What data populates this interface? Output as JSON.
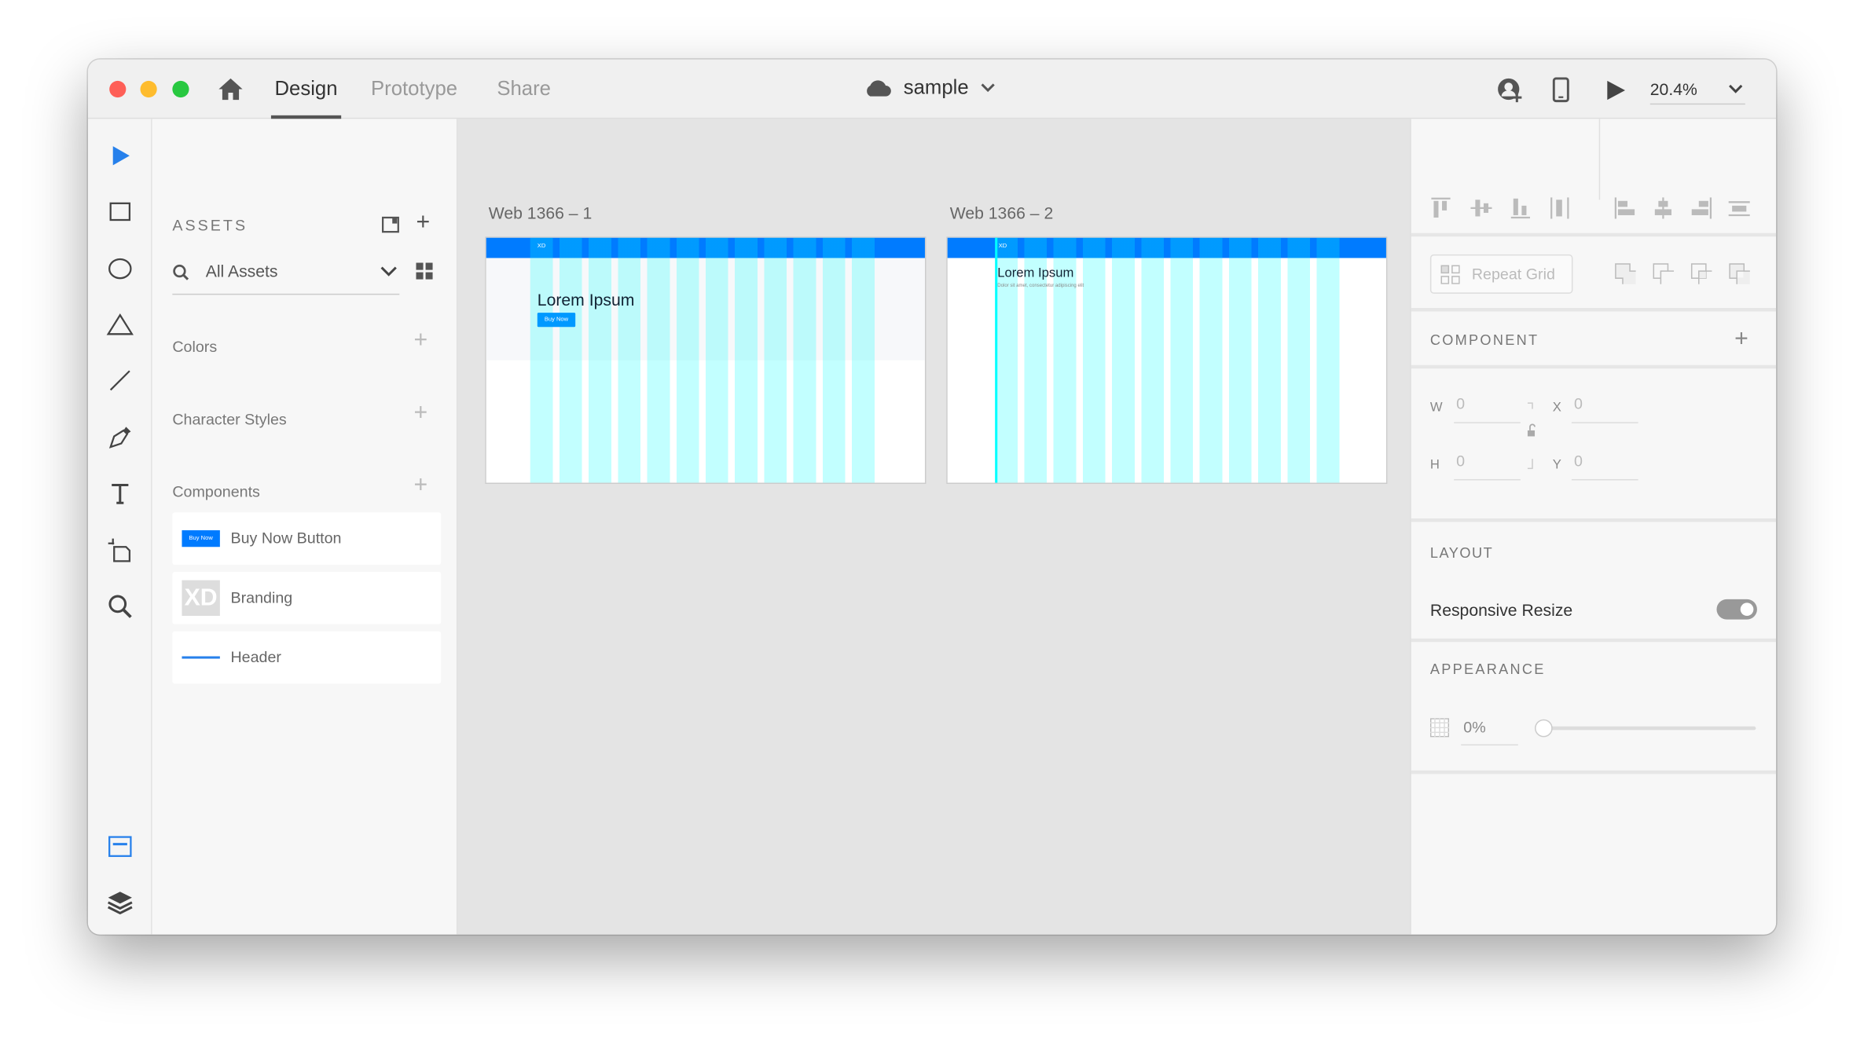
{
  "titlebar": {
    "tabs": [
      {
        "label": "Design",
        "active": true
      },
      {
        "label": "Prototype",
        "active": false
      },
      {
        "label": "Share",
        "active": false
      }
    ],
    "document": "sample",
    "zoom": "20.4%",
    "icons": [
      "home-icon",
      "cloud-icon",
      "invite-user-icon",
      "mobile-preview-icon",
      "play-icon",
      "chevron-down-icon"
    ]
  },
  "tools": [
    "select",
    "rectangle",
    "ellipse",
    "polygon",
    "line",
    "pen",
    "text",
    "artboard",
    "zoom",
    "assets",
    "layers",
    "plugins"
  ],
  "assets": {
    "title": "ASSETS",
    "filter": "All Assets",
    "sections": {
      "colors": "Colors",
      "character_styles": "Character Styles",
      "components": "Components"
    },
    "components": [
      {
        "name": "Buy Now Button",
        "thumb": "Buy Now"
      },
      {
        "name": "Branding",
        "thumb": "XD"
      },
      {
        "name": "Header"
      }
    ]
  },
  "canvas": {
    "artboards": [
      {
        "label": "Web 1366 – 1",
        "logo": "XD",
        "heading": "Lorem Ipsum",
        "button": "Buy Now"
      },
      {
        "label": "Web 1366 – 2",
        "logo": "XD",
        "heading": "Lorem Ipsum",
        "subtext": "Dolor sit amet, consectetur adipiscing elit"
      }
    ]
  },
  "inspector": {
    "repeat_grid": "Repeat Grid",
    "component": "COMPONENT",
    "w_label": "W",
    "w": "0",
    "h_label": "H",
    "h": "0",
    "x_label": "X",
    "x": "0",
    "y_label": "Y",
    "y": "0",
    "layout": "LAYOUT",
    "responsive_resize": "Responsive Resize",
    "responsive_resize_on": true,
    "appearance": "APPEARANCE",
    "opacity": "0%",
    "opacity_value": 0
  },
  "colors": {
    "accent": "#007bff",
    "selected_tool": "#2680eb",
    "grid": "#00ffff"
  }
}
